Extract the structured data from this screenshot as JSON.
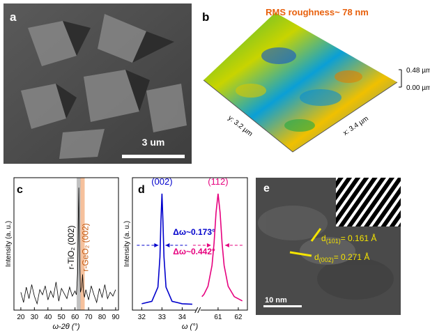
{
  "panels": {
    "a": {
      "label": "a",
      "scale_bar": "3 um"
    },
    "b": {
      "label": "b",
      "roughness": "RMS roughness~ 78 nm",
      "z_top": "0.48 µm",
      "z_bottom": "0.00 µm",
      "y_axis": "y: 3.2 µm",
      "x_axis": "x: 3.4 µm"
    },
    "c": {
      "label": "c"
    },
    "d": {
      "label": "d"
    },
    "e": {
      "label": "e",
      "scale_bar": "10 nm",
      "spacing_1": {
        "symbol": "d",
        "index": "(101)",
        "value": "= 0.161 Å"
      },
      "spacing_2": {
        "symbol": "d",
        "index": "(002)",
        "value": "= 0.271 Å"
      }
    }
  },
  "chart_data": [
    {
      "type": "line",
      "x_label": "ω-2θ (°)",
      "y_label": "Intensity (a. u.)",
      "xlim": [
        14.9,
        92.1
      ],
      "xticks": [
        20,
        30,
        40,
        50,
        60,
        70,
        80,
        90
      ],
      "ylim": [
        0,
        100
      ],
      "x": [
        20,
        22,
        24,
        26,
        28,
        30,
        32,
        34,
        36,
        38,
        40,
        42,
        44,
        46,
        48,
        50,
        52,
        54,
        56,
        58,
        60,
        61,
        62,
        62.4,
        62.8,
        63.2,
        64,
        65,
        65.6,
        66.2,
        67,
        68,
        70,
        72,
        74,
        76,
        78,
        80,
        82,
        84,
        86,
        88,
        90
      ],
      "series": [
        {
          "color": "#000000",
          "values": [
            14,
            6,
            18,
            9,
            20,
            11,
            5,
            16,
            12,
            19,
            8,
            15,
            10,
            22,
            7,
            17,
            13,
            9,
            18,
            11,
            15,
            12,
            30,
            70,
            96,
            55,
            14,
            18,
            28,
            15,
            10,
            16,
            8,
            19,
            12,
            6,
            17,
            10,
            20,
            9,
            14,
            11,
            16
          ]
        }
      ],
      "highlight_bands": [
        {
          "x": 62.8,
          "color": "#b0b0b0"
        },
        {
          "x": 65.6,
          "color": "#f4b183"
        }
      ],
      "annotations": [
        {
          "text": "r-TiO₂ (002)",
          "color": "#000000",
          "x": 62.8
        },
        {
          "text": "r-GeO₂ (002)",
          "color": "#c55a11",
          "x": 65.6
        }
      ]
    },
    {
      "type": "line",
      "x_label": "ω (°)",
      "y_label": "Intensity (a. u.)",
      "ylim": [
        0,
        115
      ],
      "x_segments": [
        {
          "xlim": [
            31.54,
            34.63
          ],
          "xticks": [
            32,
            33,
            34
          ]
        },
        {
          "xlim": [
            60.2,
            62.45
          ],
          "xticks": [
            61,
            62
          ]
        }
      ],
      "series": [
        {
          "name": "(002)",
          "color": "#0000cc",
          "x": [
            32.0,
            32.5,
            32.8,
            32.9,
            32.95,
            33.0,
            33.05,
            33.1,
            33.2,
            33.5,
            34.0,
            34.5
          ],
          "values": [
            5.7,
            7.9,
            20.7,
            47.8,
            80,
            105,
            80,
            47.8,
            20.7,
            7.9,
            5.7,
            5.3
          ],
          "fwhm_label": "Δω~0.173°"
        },
        {
          "name": "(112)",
          "color": "#e6007e",
          "x": [
            60.2,
            60.3,
            60.5,
            60.7,
            60.8,
            60.9,
            61.0,
            61.1,
            61.2,
            61.3,
            61.5,
            61.8,
            62.2
          ],
          "values": [
            12.1,
            14.1,
            21.4,
            40.2,
            60,
            88,
            105,
            88,
            60,
            40.2,
            21.4,
            12.1,
            8.3
          ],
          "fwhm_label": "Δω~0.442°"
        }
      ]
    }
  ]
}
